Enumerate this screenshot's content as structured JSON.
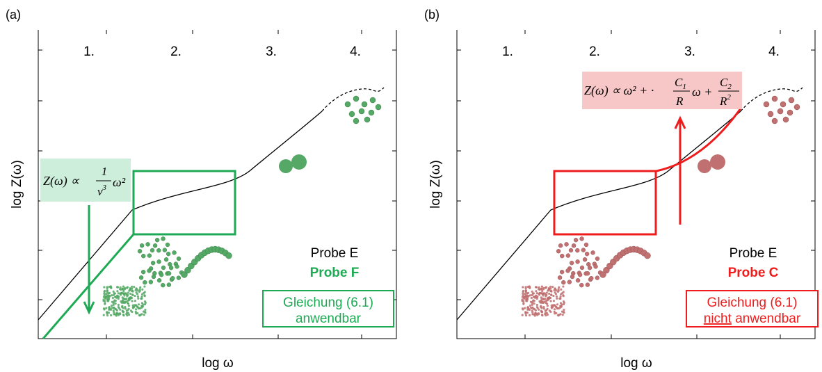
{
  "panels": [
    {
      "label": "(a)",
      "regions": [
        "1.",
        "2.",
        "3.",
        "4."
      ],
      "x_label": "log ω",
      "y_label": "log Z(ω)",
      "formula": {
        "lhs": "Z(ω) ∝",
        "numerator": "1",
        "denominator": "v",
        "denominator_exponent": "3",
        "tail": "ω²"
      },
      "samples": [
        "Probe E",
        "Probe F"
      ],
      "note": [
        "Gleichung (6.1)",
        "anwendbar"
      ]
    },
    {
      "label": "(b)",
      "regions": [
        "1.",
        "2.",
        "3.",
        "4."
      ],
      "x_label": "log ω",
      "y_label": "log Z(ω)",
      "formula": {
        "lhs": "Z(ω) ∝ ω² + ·",
        "frac1_numerator": "C",
        "frac1_subscript": "1",
        "frac1_denominator": "R",
        "middle": "ω +",
        "frac2_numerator": "C",
        "frac2_subscript": "2",
        "frac2_denominator": "R",
        "frac2_denominator_exponent": "2"
      },
      "samples": [
        "Probe E",
        "Probe C"
      ],
      "note": [
        "Gleichung (6.1)",
        "nicht",
        "anwendbar"
      ]
    }
  ]
}
